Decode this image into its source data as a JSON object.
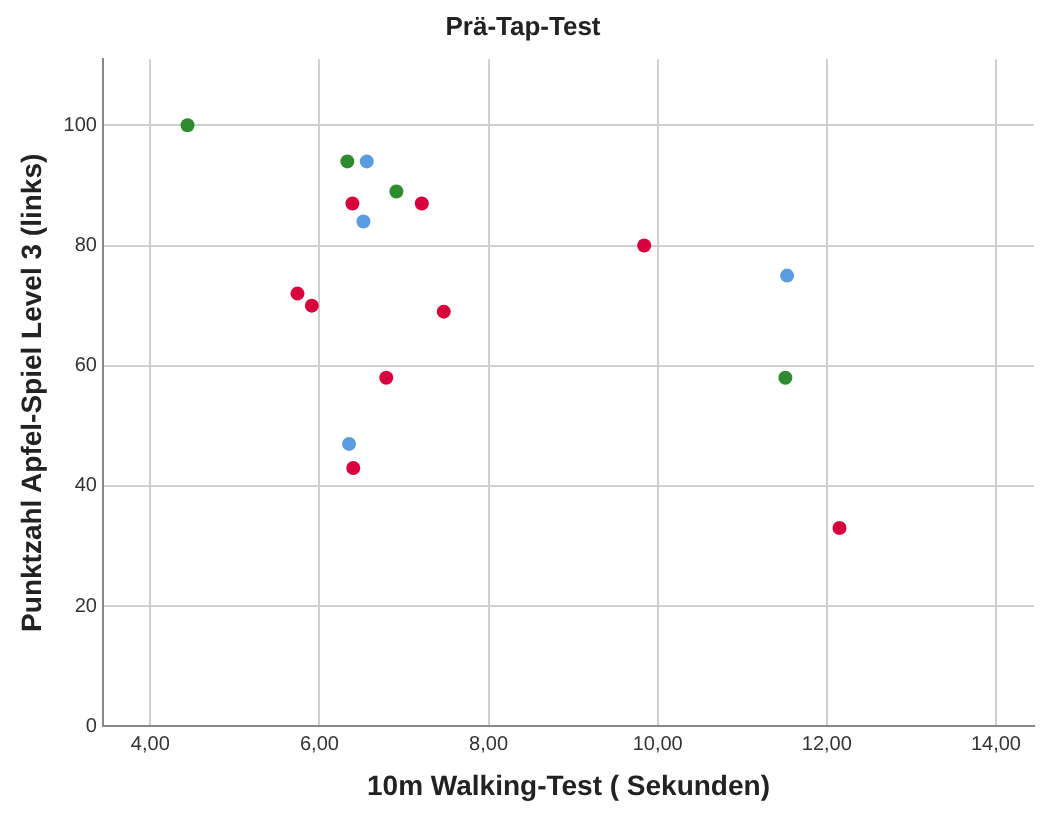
{
  "chart_data": {
    "type": "scatter",
    "title": "Prä-Tap-Test",
    "xlabel": "10m Walking-Test ( Sekunden)",
    "ylabel": "Punktzahl Apfel-Spiel Level 3 (links)",
    "series": [
      {
        "color": "#2e8b2e",
        "x": [
          4.44,
          6.33,
          6.91,
          11.51
        ],
        "values": [
          100,
          94,
          89,
          58
        ]
      },
      {
        "color": "#5b9be0",
        "x": [
          6.56,
          6.52,
          11.53,
          6.35
        ],
        "values": [
          94,
          84,
          75,
          47
        ]
      },
      {
        "color": "#d8003c",
        "x": [
          6.39,
          7.21,
          5.74,
          5.91,
          7.47,
          6.79,
          6.4,
          9.84,
          12.15
        ],
        "values": [
          87,
          87,
          72,
          70,
          69,
          58,
          43,
          80,
          33
        ]
      }
    ],
    "xlim": [
      3.44,
      14.45
    ],
    "xticks": [
      {
        "value": 4,
        "label": "4,00"
      },
      {
        "value": 6,
        "label": "6,00"
      },
      {
        "value": 8,
        "label": "8,00"
      },
      {
        "value": 10,
        "label": "10,00"
      },
      {
        "value": 12,
        "label": "12,00"
      },
      {
        "value": 14,
        "label": "14,00"
      }
    ],
    "ylim": [
      0,
      111
    ],
    "yticks": [
      0,
      20,
      40,
      60,
      80,
      100
    ],
    "grid": true,
    "legend": false,
    "marker": "circle"
  }
}
